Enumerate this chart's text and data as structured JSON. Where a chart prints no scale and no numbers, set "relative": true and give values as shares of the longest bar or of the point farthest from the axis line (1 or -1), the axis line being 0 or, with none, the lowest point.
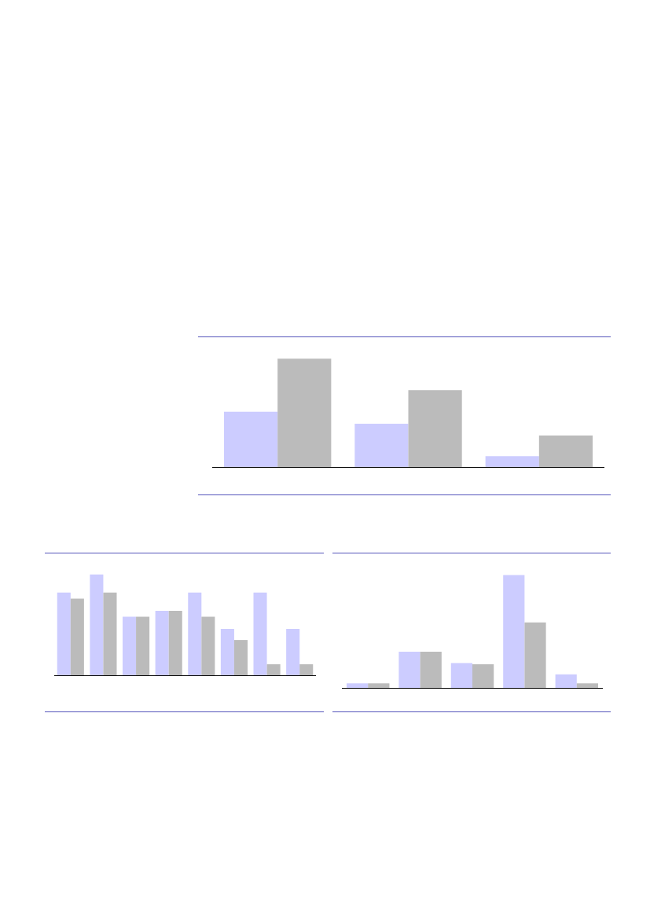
{
  "chart_data": [
    {
      "type": "bar",
      "relative": true,
      "categories": [
        null,
        null,
        null
      ],
      "series": [
        {
          "color": "#ccccff",
          "values": [
            0.51,
            0.4,
            0.1
          ]
        },
        {
          "color": "#bbbbbb",
          "values": [
            1,
            0.71,
            0.29
          ]
        }
      ]
    },
    {
      "type": "bar",
      "relative": true,
      "categories": [
        null,
        null,
        null,
        null,
        null,
        null,
        null,
        null
      ],
      "series": [
        {
          "color": "#ccccff",
          "values": [
            0.82,
            1,
            0.58,
            0.64,
            0.82,
            0.46,
            0.82,
            0.46
          ]
        },
        {
          "color": "#bbbbbb",
          "values": [
            0.76,
            0.82,
            0.58,
            0.64,
            0.58,
            0.35,
            0.11,
            0.11
          ]
        }
      ]
    },
    {
      "type": "bar",
      "relative": true,
      "categories": [
        null,
        null,
        null,
        null,
        null
      ],
      "series": [
        {
          "color": "#ccccff",
          "values": [
            0.04,
            0.32,
            0.22,
            1,
            0.12
          ]
        },
        {
          "color": "#bbbbbb",
          "values": [
            0.04,
            0.32,
            0.21,
            0.58,
            0.04
          ]
        }
      ]
    }
  ]
}
